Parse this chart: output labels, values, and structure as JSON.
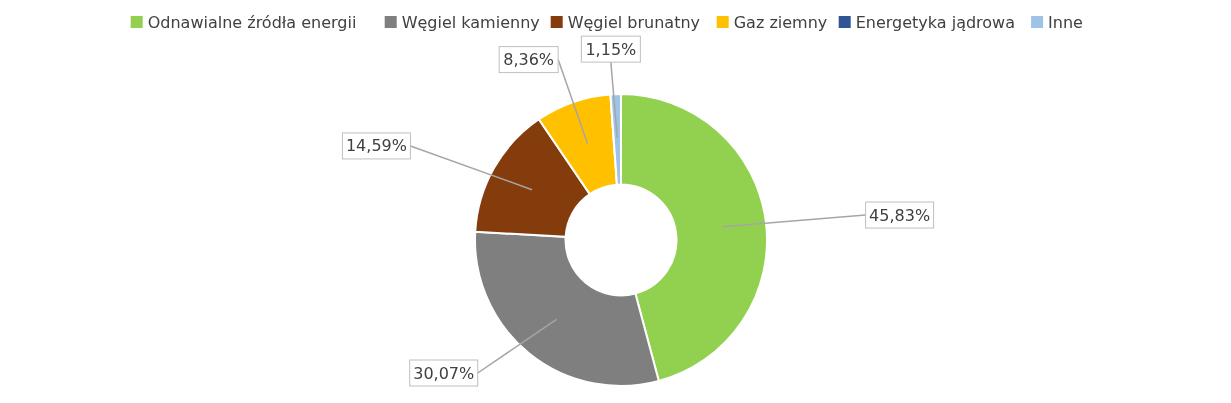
{
  "chart_data": {
    "type": "donut",
    "categories": [
      "Odnawialne źródła energii",
      "Węgiel kamienny",
      "Węgiel brunatny",
      "Gaz ziemny",
      "Energetyka jądrowa",
      "Inne"
    ],
    "values": [
      45.83,
      30.07,
      14.59,
      8.36,
      0,
      1.15
    ],
    "colors": [
      "#92d050",
      "#7f7f7f",
      "#843c0c",
      "#ffc000",
      "#2f5597",
      "#9dc3e6"
    ],
    "value_labels": [
      "45,83%",
      "30,07%",
      "14,59%",
      "8,36%",
      null,
      "1,15%"
    ],
    "legend": "top"
  }
}
